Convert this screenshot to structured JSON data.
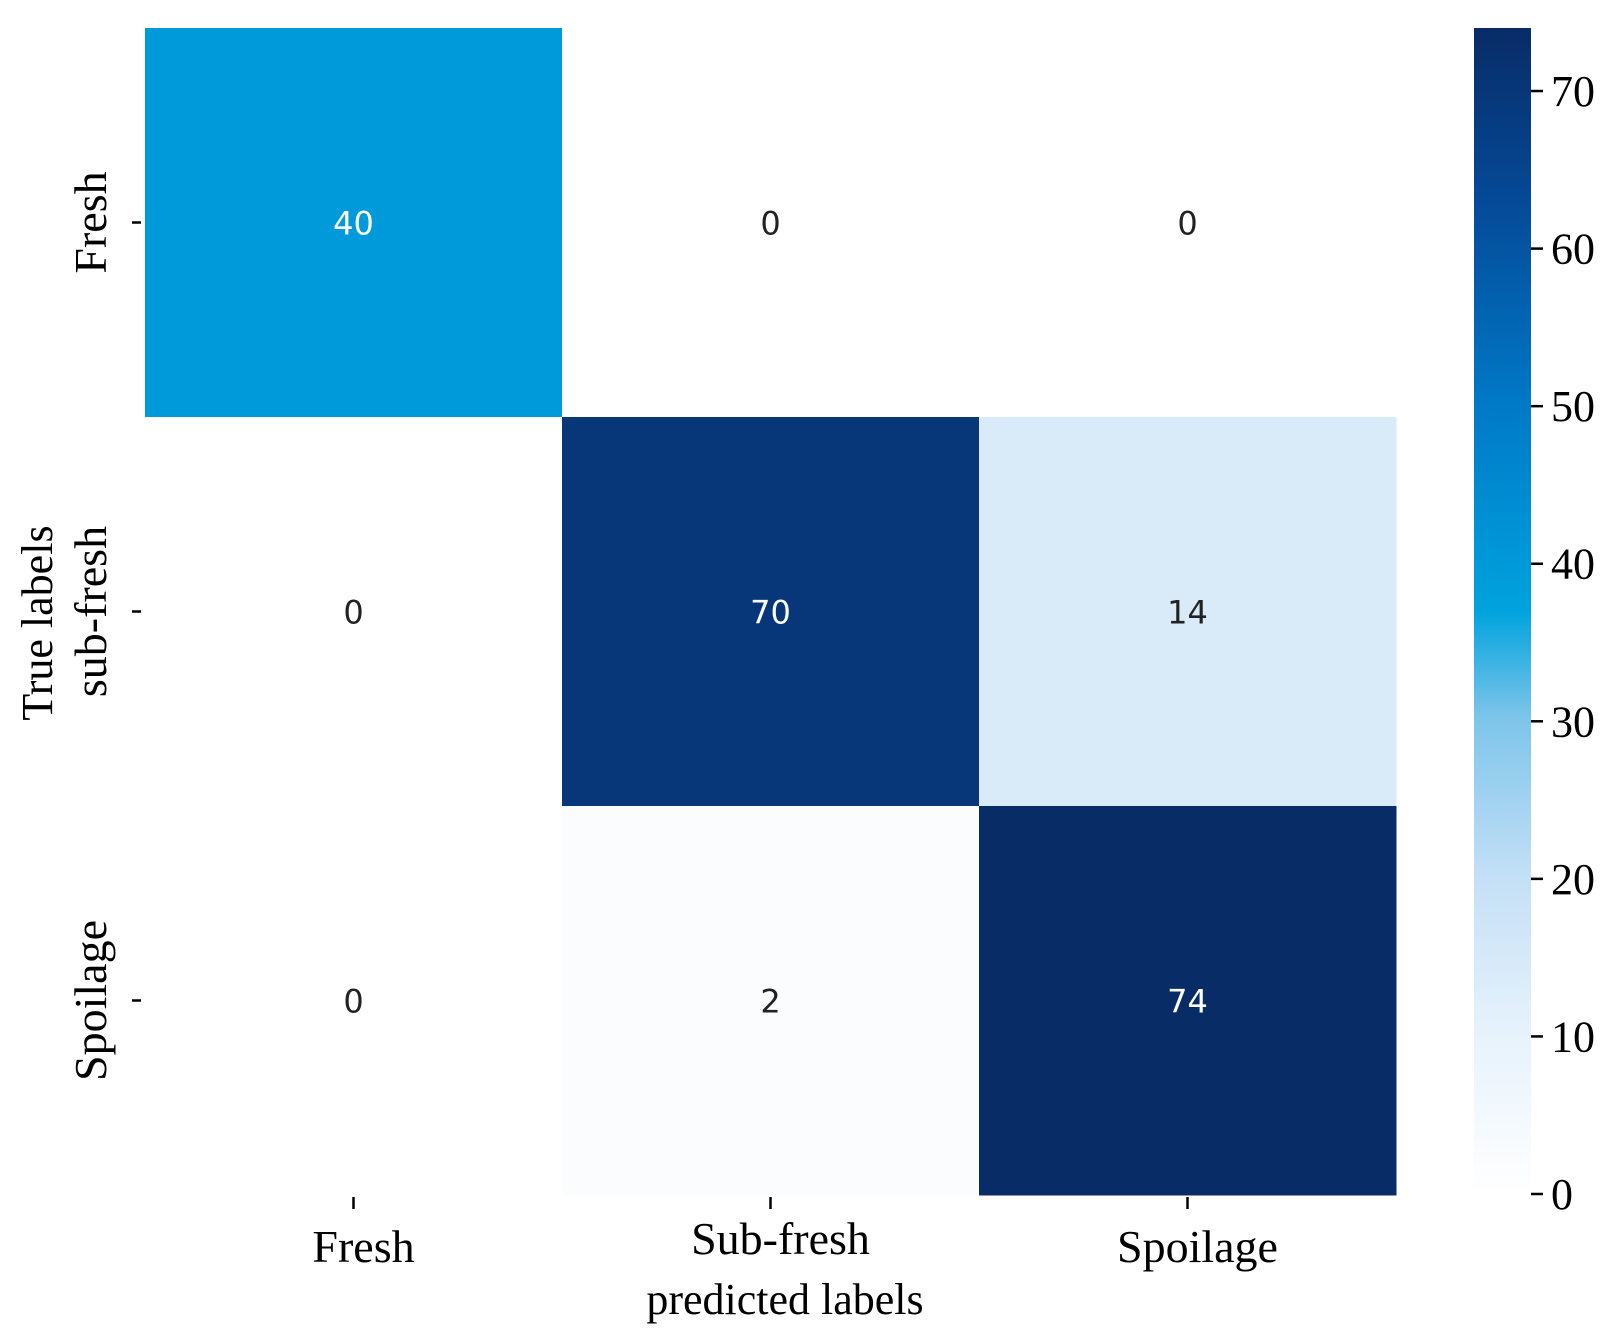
{
  "chart_data": {
    "type": "heatmap",
    "x_categories": [
      "Fresh",
      "Sub-fresh",
      "Spoilage"
    ],
    "y_categories": [
      "Fresh",
      "sub-fresh",
      "Spoilage"
    ],
    "xlabel": "predicted labels",
    "ylabel": "True labels",
    "values": [
      [
        40,
        0,
        0
      ],
      [
        0,
        70,
        14
      ],
      [
        0,
        2,
        74
      ]
    ],
    "colorbar": {
      "min": 0,
      "max": 74,
      "ticks": [
        0,
        10,
        20,
        30,
        40,
        50,
        60,
        70
      ],
      "colormap": "Blues"
    }
  }
}
